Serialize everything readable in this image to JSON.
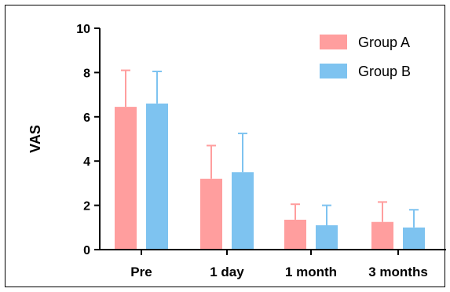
{
  "chart_data": {
    "type": "bar",
    "ylabel": "VAS",
    "xlabel": "",
    "ylim": [
      0,
      10
    ],
    "yticks": [
      "0",
      "2",
      "4",
      "6",
      "8",
      "10"
    ],
    "categories": [
      "Pre",
      "1 day",
      "1 month",
      "3 months"
    ],
    "legend_position": "top-right",
    "grid": false,
    "series": [
      {
        "name": "Group A",
        "color": "#ff9e9e",
        "values": [
          6.45,
          3.2,
          1.35,
          1.25
        ],
        "errors": [
          1.65,
          1.5,
          0.7,
          0.9
        ]
      },
      {
        "name": "Group B",
        "color": "#7ec3f0",
        "values": [
          6.6,
          3.5,
          1.1,
          1.0
        ],
        "errors": [
          1.45,
          1.75,
          0.9,
          0.8
        ]
      }
    ]
  }
}
